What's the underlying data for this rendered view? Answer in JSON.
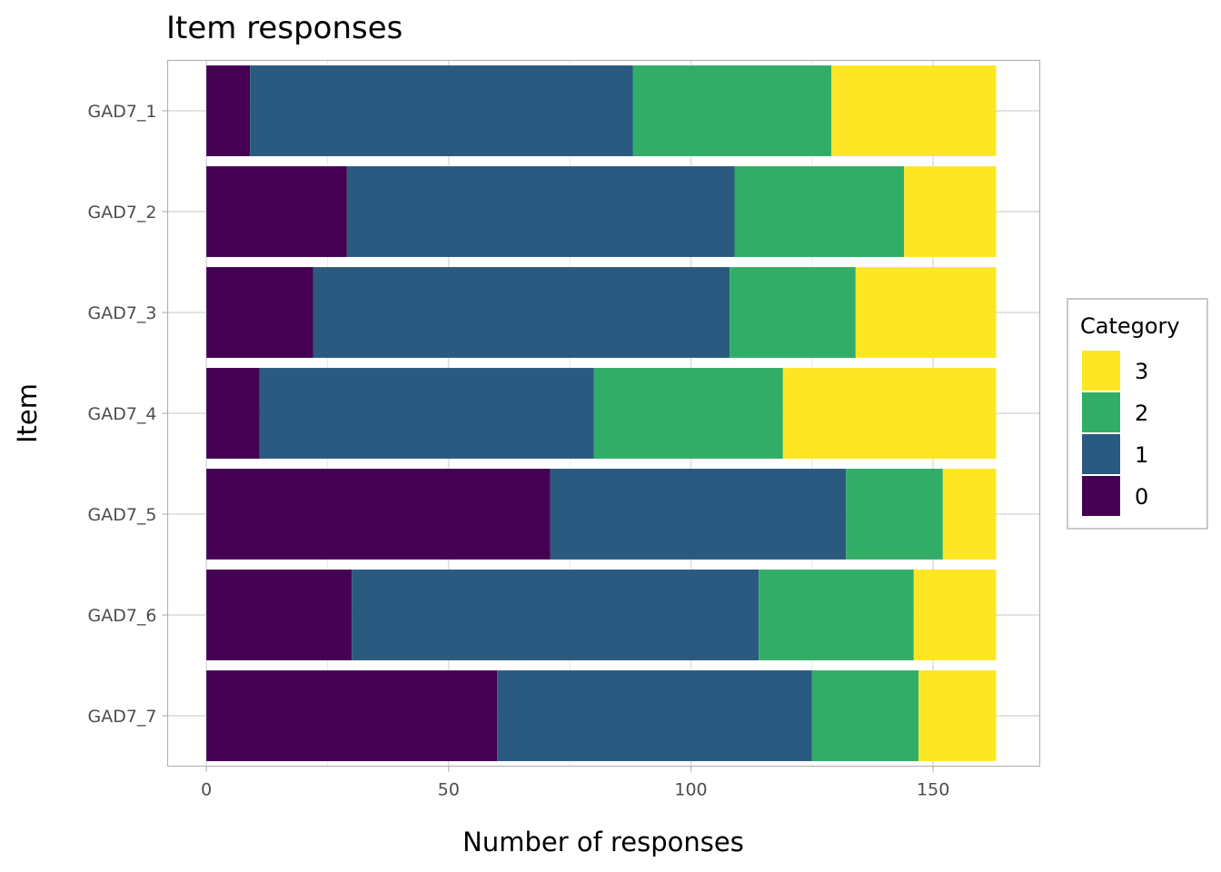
{
  "chart_data": {
    "type": "bar",
    "orientation": "horizontal",
    "stacked": true,
    "title": "Item responses",
    "xlabel": "Number of responses",
    "ylabel": "Item",
    "xlim": [
      -8,
      172
    ],
    "xticks": [
      0,
      50,
      100,
      150
    ],
    "grid": true,
    "legend_title": "Category",
    "legend_position": "right",
    "categories": [
      "GAD7_1",
      "GAD7_2",
      "GAD7_3",
      "GAD7_4",
      "GAD7_5",
      "GAD7_6",
      "GAD7_7"
    ],
    "series": [
      {
        "name": "0",
        "color": "#440154",
        "values": [
          9,
          29,
          22,
          11,
          71,
          30,
          60
        ]
      },
      {
        "name": "1",
        "color": "#2a5a80",
        "values": [
          79,
          80,
          86,
          69,
          61,
          84,
          65
        ]
      },
      {
        "name": "2",
        "color": "#32ad68",
        "values": [
          41,
          35,
          26,
          39,
          20,
          32,
          22
        ]
      },
      {
        "name": "3",
        "color": "#fde725",
        "values": [
          34,
          19,
          29,
          44,
          11,
          17,
          16
        ]
      }
    ],
    "legend_order": [
      "3",
      "2",
      "1",
      "0"
    ]
  }
}
